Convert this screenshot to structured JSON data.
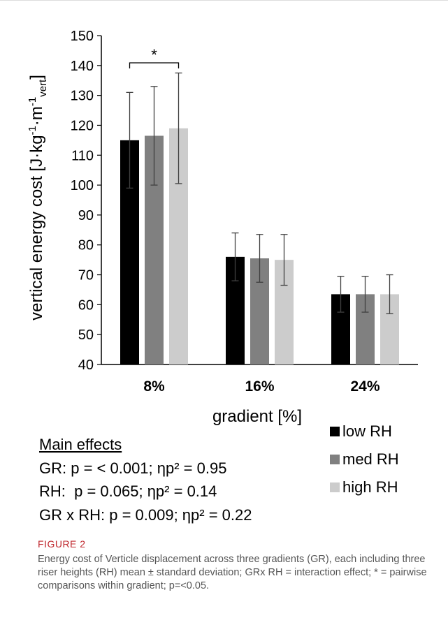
{
  "chart_data": {
    "type": "bar",
    "ylabel": "vertical energy cost [J·kg⁻¹·m⁻¹vert]",
    "ylabel_parts": {
      "main": "vertical energy cost [J·kg",
      "sup1": "-1",
      "mid": "·m",
      "sup2": "-1",
      "sub": "vert",
      "end": "]"
    },
    "xlabel": "gradient [%]",
    "ylim": [
      40,
      150
    ],
    "yticks": [
      40,
      50,
      60,
      70,
      80,
      90,
      100,
      110,
      120,
      130,
      140,
      150
    ],
    "categories": [
      "8%",
      "16%",
      "24%"
    ],
    "series": [
      {
        "name": "low RH",
        "color": "#000000",
        "values": [
          115,
          76,
          63.5
        ],
        "sd": [
          16,
          8,
          6
        ]
      },
      {
        "name": "med RH",
        "color": "#808080",
        "values": [
          116.5,
          75.5,
          63.5
        ],
        "sd": [
          16.5,
          8,
          6
        ]
      },
      {
        "name": "high RH",
        "color": "#cccccc",
        "values": [
          119,
          75,
          63.5
        ],
        "sd": [
          18.5,
          8.5,
          6.5
        ]
      }
    ],
    "annotations": [
      {
        "text": "*",
        "category": "8%",
        "from": "low RH",
        "to": "high RH"
      }
    ],
    "legend_position": "bottom-right",
    "grid": false
  },
  "effects": {
    "title": "Main effects",
    "lines": [
      "GR: p = < 0.001; ηp² = 0.95",
      "RH:  p = 0.065; ηp² = 0.14",
      "GR x RH: p = 0.009; ηp² = 0.22"
    ]
  },
  "caption": {
    "label": "FIGURE 2",
    "text": "Energy cost of Verticle displacement across three gradients (GR), each including three riser heights (RH) mean ± standard deviation; GRx RH = interaction effect; * = pairwise comparisons within gradient; p=<0.05."
  }
}
